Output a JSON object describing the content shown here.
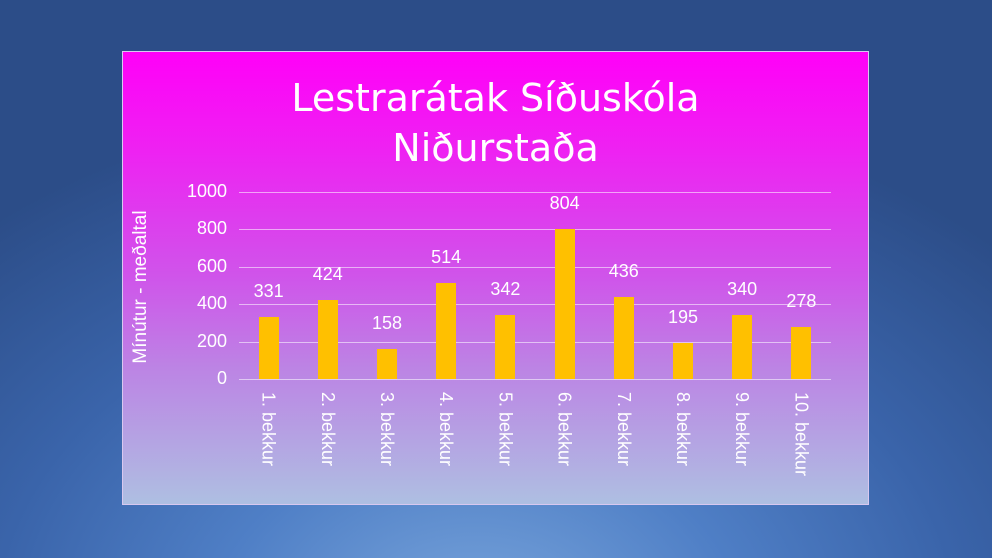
{
  "chart_data": {
    "type": "bar",
    "title": "Lestrarátak Síðuskóla Niðurstaða",
    "title_lines": [
      "Lestrarátak Síðuskóla",
      "Niðurstaða"
    ],
    "xlabel": "",
    "ylabel": "Mínútur - meðaltal",
    "ylim": [
      0,
      1000
    ],
    "yticks": [
      "0",
      "200",
      "400",
      "600",
      "800",
      "1000"
    ],
    "grid": true,
    "legend": null,
    "bar_color": "#ffc000",
    "categories": [
      "1. bekkur",
      "2. bekkur",
      "3. bekkur",
      "4. bekkur",
      "5. bekkur",
      "6. bekkur",
      "7. bekkur",
      "8. bekkur",
      "9. bekkur",
      "10. bekkur"
    ],
    "values": [
      331,
      424,
      158,
      514,
      342,
      804,
      436,
      195,
      340,
      278
    ],
    "value_labels": [
      "331",
      "424",
      "158",
      "514",
      "342",
      "804",
      "436",
      "195",
      "340",
      "278"
    ]
  }
}
